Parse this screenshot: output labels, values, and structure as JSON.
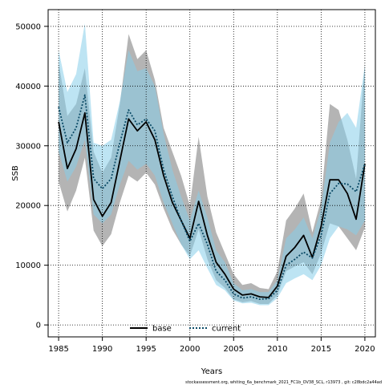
{
  "chart_data": {
    "type": "line",
    "xlabel": "Years",
    "ylabel": "SSB",
    "xlim": [
      1983.8,
      2021.2
    ],
    "ylim": [
      -2000,
      52800
    ],
    "x_ticks": [
      1985,
      1990,
      1995,
      2000,
      2005,
      2010,
      2015,
      2020
    ],
    "x_tick_labels": [
      "1985",
      "1990",
      "1995",
      "2000",
      "2005",
      "2010",
      "2015",
      "2020"
    ],
    "y_ticks": [
      0,
      10000,
      20000,
      30000,
      40000,
      50000
    ],
    "y_tick_labels": [
      "0",
      "10000",
      "20000",
      "30000",
      "40000",
      "50000"
    ],
    "grid": true,
    "legend_position": "bottom-center",
    "footnote": "stockassessment.org,  whiting_6a_benchmark_2021_FC1b_OV38_SCL, r13973 , git: c28bdc2a44ad",
    "x": [
      1985,
      1986,
      1987,
      1988,
      1989,
      1990,
      1991,
      1992,
      1993,
      1994,
      1995,
      1996,
      1997,
      1998,
      1999,
      2000,
      2001,
      2002,
      2003,
      2004,
      2005,
      2006,
      2007,
      2008,
      2009,
      2010,
      2011,
      2012,
      2013,
      2014,
      2015,
      2016,
      2017,
      2018,
      2019,
      2020
    ],
    "series": [
      {
        "name": "base",
        "color": "#000000",
        "line_style": "solid",
        "band_color": "#8c8c8c",
        "values": [
          34000,
          26200,
          29500,
          35500,
          21000,
          18200,
          20500,
          27500,
          34500,
          32500,
          34000,
          31000,
          25000,
          20500,
          17500,
          14500,
          20700,
          15000,
          10500,
          8500,
          6000,
          5000,
          5200,
          4700,
          4600,
          6500,
          11500,
          13000,
          15000,
          11300,
          16500,
          24300,
          24300,
          22000,
          17700,
          27000
        ],
        "lower": [
          24000,
          19000,
          22500,
          28000,
          15800,
          13200,
          15200,
          20500,
          25000,
          24000,
          25500,
          23500,
          19500,
          16000,
          13500,
          11500,
          16000,
          11000,
          7500,
          6200,
          4300,
          3800,
          4000,
          3500,
          3500,
          5000,
          9000,
          9800,
          10500,
          8500,
          12000,
          17000,
          16500,
          14500,
          12500,
          16300
        ],
        "upper": [
          44000,
          35000,
          37000,
          43000,
          29000,
          25500,
          28000,
          37000,
          48700,
          44500,
          46000,
          41000,
          33000,
          29000,
          25000,
          20000,
          31500,
          21500,
          15500,
          12000,
          8500,
          6700,
          7000,
          6200,
          6000,
          9000,
          17500,
          19500,
          22000,
          15500,
          21000,
          37000,
          36000,
          31000,
          24500,
          44000
        ]
      },
      {
        "name": "current",
        "color": "#0a4a66",
        "line_style": "dotted",
        "band_color": "#87cde9",
        "values": [
          36500,
          30500,
          33000,
          38500,
          24500,
          22800,
          24500,
          30500,
          36000,
          33500,
          34500,
          32500,
          26000,
          21500,
          17500,
          14000,
          17000,
          13500,
          9000,
          7500,
          5200,
          4500,
          4700,
          4300,
          4400,
          5800,
          10000,
          11000,
          12200,
          11200,
          15000,
          22000,
          23700,
          23600,
          22300,
          27000
        ],
        "lower": [
          29000,
          24000,
          26500,
          31000,
          18500,
          17000,
          18500,
          23500,
          27500,
          26000,
          27000,
          25000,
          20500,
          17000,
          13500,
          11000,
          12500,
          9500,
          6700,
          5800,
          4100,
          3600,
          3700,
          3300,
          3300,
          4500,
          7000,
          7800,
          8500,
          7500,
          10000,
          14500,
          16500,
          16000,
          15000,
          17500
        ],
        "upper": [
          46000,
          39000,
          42000,
          50500,
          30500,
          30000,
          31000,
          37500,
          46000,
          42500,
          43000,
          40000,
          32000,
          26000,
          21500,
          17500,
          22500,
          18000,
          12500,
          10500,
          7000,
          5800,
          6000,
          5500,
          5500,
          7500,
          14500,
          16000,
          18000,
          14500,
          19500,
          30500,
          34000,
          35500,
          33000,
          43500
        ]
      }
    ]
  }
}
